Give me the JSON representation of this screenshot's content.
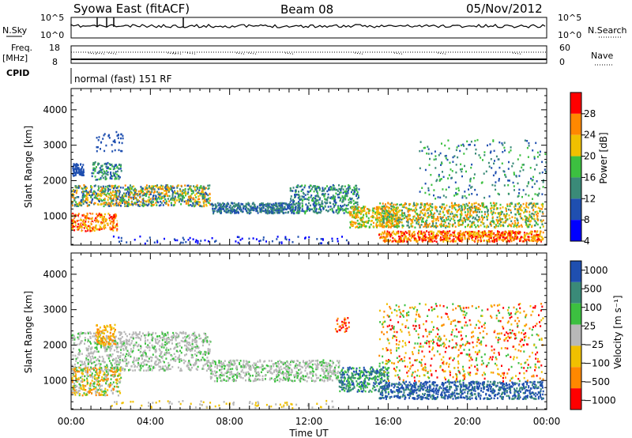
{
  "header": {
    "station": "Syowa East (fitACF)",
    "beam": "Beam 08",
    "date": "05/Nov/2012"
  },
  "noise_panel": {
    "left_label": "N.Sky",
    "right_label": "N.Search",
    "tick_top": "10^5",
    "tick_bottom": "10^0"
  },
  "freq_panel": {
    "left_label_1": "Freq.",
    "left_label_2": "[MHz]",
    "right_label": "Nave",
    "left_tick_top": "18",
    "left_tick_bottom": "8",
    "right_tick_top": "60",
    "right_tick_bottom": "0"
  },
  "cpid": {
    "label": "CPID",
    "value": "normal (fast) 151 RF"
  },
  "chart_data": [
    {
      "type": "heatmap",
      "name": "power",
      "ylabel": "Slant Range [km]",
      "ylim": [
        180,
        4600
      ],
      "y_ticks": [
        "1000",
        "2000",
        "3000",
        "4000"
      ],
      "colorbar_label": "Power [dB]",
      "colorbar_ticks": [
        "4",
        "8",
        "12",
        "16",
        "20",
        "24",
        "28"
      ],
      "colors": [
        "#0000ff",
        "#1f4fb0",
        "#3a8a78",
        "#3cc040",
        "#f0c000",
        "#ff8800",
        "#ff0000"
      ]
    },
    {
      "type": "heatmap",
      "name": "velocity",
      "xlabel": "Time UT",
      "ylabel": "Slant Range [km]",
      "ylim": [
        180,
        4600
      ],
      "y_ticks": [
        "1000",
        "2000",
        "3000",
        "4000"
      ],
      "x_ticks": [
        "00:00",
        "04:00",
        "08:00",
        "12:00",
        "16:00",
        "20:00",
        "00:00"
      ],
      "colorbar_label": "Velocity [m s⁻¹]",
      "colorbar_ticks": [
        "1000",
        "500",
        "100",
        "25",
        "−25",
        "−100",
        "−500",
        "−1000"
      ],
      "colors": [
        "#1f4fb0",
        "#3a8a78",
        "#3cc040",
        "#b8b8b8",
        "#f0c000",
        "#ff8800",
        "#ff0000"
      ],
      "ground_scatter_color": "#b8b8b8"
    }
  ]
}
